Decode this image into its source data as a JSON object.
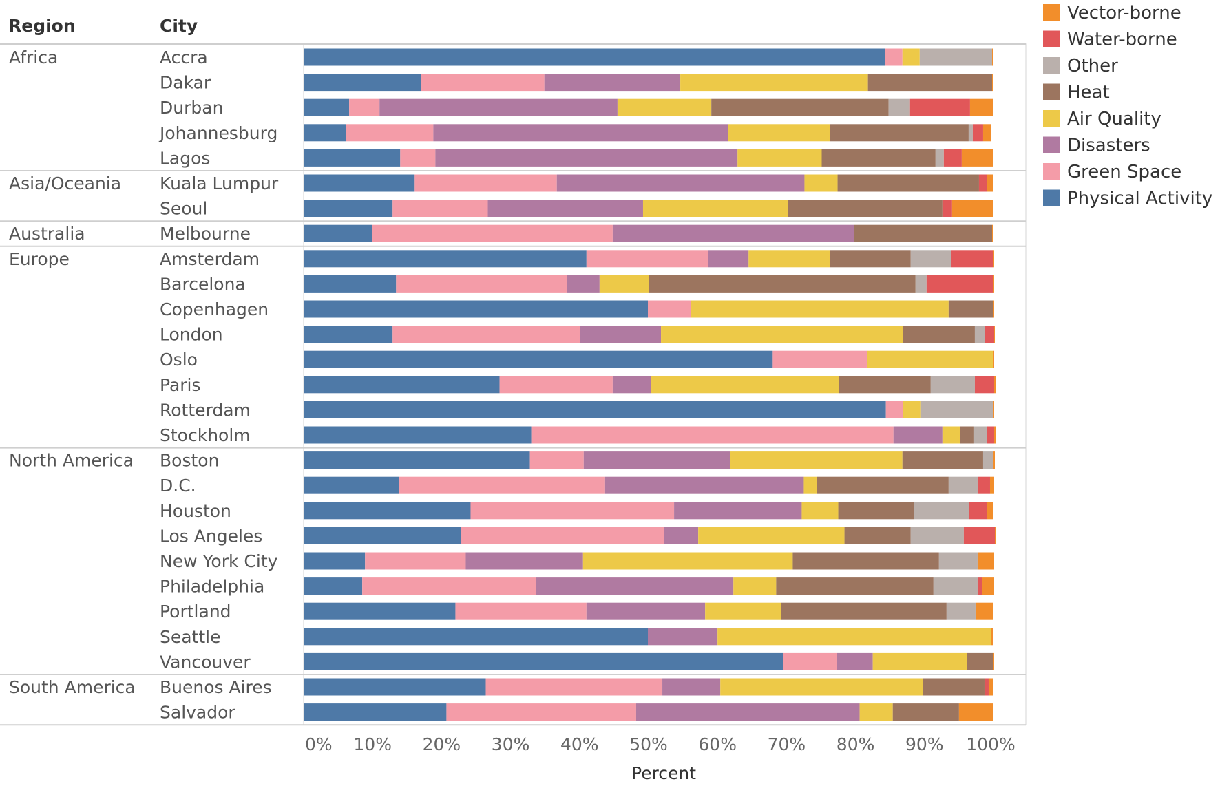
{
  "chart_data": {
    "type": "bar",
    "orientation": "horizontal",
    "stacked": "100%",
    "row_headers": [
      "Region",
      "City"
    ],
    "xlabel": "Percent",
    "xlim": [
      0,
      100
    ],
    "x_ticks": [
      "0%",
      "10%",
      "20%",
      "30%",
      "40%",
      "50%",
      "60%",
      "70%",
      "80%",
      "90%",
      "100%"
    ],
    "legend_placement": "top-right",
    "legend": [
      "Vector-borne",
      "Water-borne",
      "Other",
      "Heat",
      "Air Quality",
      "Disasters",
      "Green Space",
      "Physical Activity"
    ],
    "series": [
      {
        "name": "Physical Activity",
        "color": "#4e79a7"
      },
      {
        "name": "Green Space",
        "color": "#f49ca8"
      },
      {
        "name": "Disasters",
        "color": "#b07aa1"
      },
      {
        "name": "Air Quality",
        "color": "#edc948"
      },
      {
        "name": "Heat",
        "color": "#9c755f"
      },
      {
        "name": "Other",
        "color": "#bab0ac"
      },
      {
        "name": "Water-borne",
        "color": "#e15759"
      },
      {
        "name": "Vector-borne",
        "color": "#f28e2b"
      }
    ],
    "groups": [
      {
        "region": "Africa",
        "cities": [
          {
            "city": "Accra",
            "values": [
              84.3,
              2.5,
              0,
              2.5,
              0,
              10.5,
              0,
              0.2
            ]
          },
          {
            "city": "Dakar",
            "values": [
              17.0,
              17.9,
              19.7,
              27.2,
              18.0,
              0,
              0,
              0.2
            ]
          },
          {
            "city": "Durban",
            "values": [
              6.6,
              4.4,
              34.5,
              13.6,
              25.7,
              3.1,
              8.7,
              3.3
            ]
          },
          {
            "city": "Johannesburg",
            "values": [
              6.1,
              12.7,
              42.7,
              14.8,
              20.1,
              0.6,
              1.5,
              1.2
            ]
          },
          {
            "city": "Lagos",
            "values": [
              14.0,
              5.1,
              43.8,
              12.2,
              16.5,
              1.2,
              2.6,
              4.5
            ]
          }
        ]
      },
      {
        "region": "Asia/Oceania",
        "cities": [
          {
            "city": "Kuala Lumpur",
            "values": [
              16.1,
              20.6,
              35.9,
              4.8,
              20.5,
              0,
              1.2,
              0.8
            ]
          },
          {
            "city": "Seoul",
            "values": [
              12.9,
              13.8,
              22.5,
              21.0,
              22.4,
              0,
              1.4,
              5.9
            ]
          }
        ]
      },
      {
        "region": "Australia",
        "cities": [
          {
            "city": "Melbourne",
            "values": [
              9.9,
              34.9,
              35.0,
              0,
              20.0,
              0,
              0,
              0.2
            ]
          }
        ]
      },
      {
        "region": "Europe",
        "cities": [
          {
            "city": "Amsterdam",
            "values": [
              41.0,
              17.6,
              5.9,
              11.8,
              11.7,
              5.9,
              6.0,
              0.2
            ]
          },
          {
            "city": "Barcelona",
            "values": [
              13.4,
              24.8,
              4.7,
              7.1,
              38.7,
              1.6,
              9.6,
              0.2
            ]
          },
          {
            "city": "Copenhagen",
            "values": [
              49.9,
              6.2,
              0,
              37.4,
              6.4,
              0,
              0,
              0.2
            ]
          },
          {
            "city": "London",
            "values": [
              12.9,
              27.2,
              11.7,
              35.1,
              10.4,
              1.5,
              1.3,
              0.1
            ]
          },
          {
            "city": "Oslo",
            "values": [
              68.0,
              13.7,
              0,
              18.2,
              0,
              0,
              0,
              0.2
            ]
          },
          {
            "city": "Paris",
            "values": [
              28.4,
              16.4,
              5.6,
              27.2,
              13.3,
              6.4,
              2.8,
              0.2
            ]
          },
          {
            "city": "Rotterdam",
            "values": [
              84.4,
              2.5,
              0,
              2.5,
              0,
              10.5,
              0,
              0.2
            ]
          },
          {
            "city": "Stockholm",
            "values": [
              33.0,
              52.5,
              7.1,
              2.6,
              1.9,
              2.0,
              1.0,
              0.2
            ]
          }
        ]
      },
      {
        "region": "North America",
        "cities": [
          {
            "city": "Boston",
            "values": [
              32.8,
              7.8,
              21.2,
              25.0,
              11.7,
              1.5,
              0,
              0.2
            ]
          },
          {
            "city": "D.C.",
            "values": [
              13.8,
              29.9,
              28.8,
              1.9,
              19.1,
              4.2,
              1.8,
              0.6
            ]
          },
          {
            "city": "Houston",
            "values": [
              24.2,
              29.5,
              18.5,
              5.3,
              11.0,
              8.0,
              2.6,
              0.8
            ]
          },
          {
            "city": "Los Angeles",
            "values": [
              22.8,
              29.4,
              5.0,
              21.2,
              9.6,
              7.7,
              4.5,
              0.1
            ]
          },
          {
            "city": "New York City",
            "values": [
              8.9,
              14.6,
              17.0,
              30.4,
              21.2,
              5.6,
              0,
              2.4
            ]
          },
          {
            "city": "Philadelphia",
            "values": [
              8.5,
              25.2,
              28.6,
              6.2,
              22.8,
              6.4,
              0.7,
              1.7
            ]
          },
          {
            "city": "Portland",
            "values": [
              22.0,
              19.0,
              17.2,
              11.0,
              24.0,
              4.2,
              0,
              2.6
            ]
          },
          {
            "city": "Seattle",
            "values": [
              49.9,
              0,
              10.1,
              39.7,
              0,
              0,
              0,
              0.2
            ]
          },
          {
            "city": "Vancouver",
            "values": [
              69.5,
              7.8,
              5.2,
              13.7,
              3.8,
              0,
              0,
              0.1
            ]
          }
        ]
      },
      {
        "region": "South America",
        "cities": [
          {
            "city": "Buenos Aires",
            "values": [
              26.4,
              25.6,
              8.4,
              29.4,
              8.9,
              0,
              0.6,
              0.7
            ]
          },
          {
            "city": "Salvador",
            "values": [
              20.7,
              27.5,
              32.4,
              4.8,
              9.6,
              0,
              0,
              5.0
            ]
          }
        ]
      }
    ]
  }
}
